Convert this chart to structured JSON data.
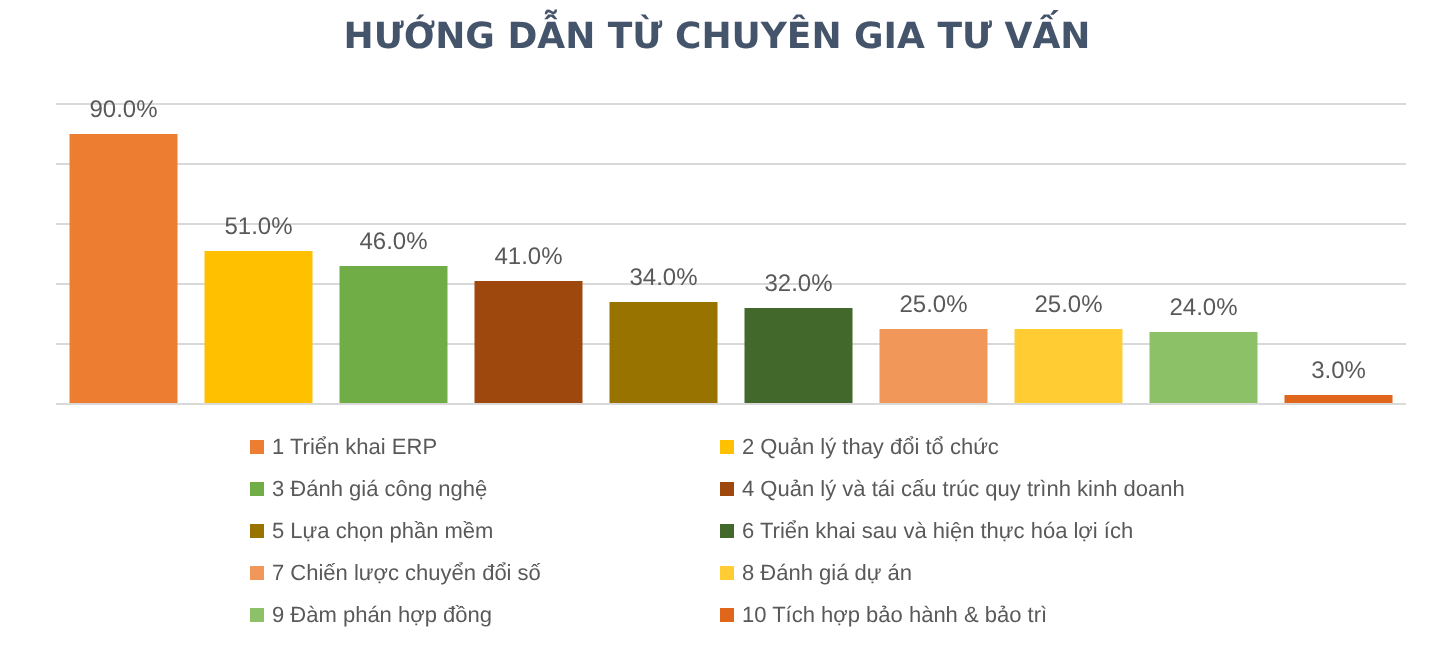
{
  "chart_data": {
    "type": "bar",
    "title": "HƯỚNG DẪN TỪ CHUYÊN GIA TƯ VẤN",
    "stacked": true,
    "categories": [
      null,
      null,
      null,
      null,
      null,
      null,
      null,
      null,
      null,
      null
    ],
    "series": [
      {
        "name": "1 Triển khai ERP",
        "color": "#ed7d31",
        "values": [
          90,
          null,
          null,
          null,
          null,
          null,
          null,
          null,
          null,
          null
        ],
        "value_labels": [
          "90.0%",
          null,
          null,
          null,
          null,
          null,
          null,
          null,
          null,
          null
        ]
      },
      {
        "name": "2 Quản lý thay đổi tổ chức",
        "color": "#ffc000",
        "values": [
          null,
          51,
          null,
          null,
          null,
          null,
          null,
          null,
          null,
          null
        ],
        "value_labels": [
          null,
          "51.0%",
          null,
          null,
          null,
          null,
          null,
          null,
          null,
          null
        ]
      },
      {
        "name": "3 Đánh giá công nghệ",
        "color": "#70ad47",
        "values": [
          null,
          null,
          46,
          null,
          null,
          null,
          null,
          null,
          null,
          null
        ],
        "value_labels": [
          null,
          null,
          "46.0%",
          null,
          null,
          null,
          null,
          null,
          null,
          null
        ]
      },
      {
        "name": "4 Quản lý và tái cấu trúc quy trình kinh doanh",
        "color": "#9e480e",
        "values": [
          null,
          null,
          null,
          41,
          null,
          null,
          null,
          null,
          null,
          null
        ],
        "value_labels": [
          null,
          null,
          null,
          "41.0%",
          null,
          null,
          null,
          null,
          null,
          null
        ]
      },
      {
        "name": "5 Lựa chọn phần mềm",
        "color": "#997300",
        "values": [
          null,
          null,
          null,
          null,
          34,
          null,
          null,
          null,
          null,
          null
        ],
        "value_labels": [
          null,
          null,
          null,
          null,
          "34.0%",
          null,
          null,
          null,
          null,
          null
        ]
      },
      {
        "name": "6 Triển khai sau và hiện thực hóa lợi ích",
        "color": "#43682b",
        "values": [
          null,
          null,
          null,
          null,
          null,
          32,
          null,
          null,
          null,
          null
        ],
        "value_labels": [
          null,
          null,
          null,
          null,
          null,
          "32.0%",
          null,
          null,
          null,
          null
        ]
      },
      {
        "name": "7 Chiến lược chuyển đổi số",
        "color": "#f1975a",
        "values": [
          null,
          null,
          null,
          null,
          null,
          null,
          25,
          null,
          null,
          null
        ],
        "value_labels": [
          null,
          null,
          null,
          null,
          null,
          null,
          "25.0%",
          null,
          null,
          null
        ]
      },
      {
        "name": "8 Đánh giá dự án",
        "color": "#ffcd33",
        "values": [
          null,
          null,
          null,
          null,
          null,
          null,
          null,
          25,
          null,
          null
        ],
        "value_labels": [
          null,
          null,
          null,
          null,
          null,
          null,
          null,
          "25.0%",
          null,
          null
        ]
      },
      {
        "name": "9 Đàm phán hợp đồng",
        "color": "#8cc168",
        "values": [
          null,
          null,
          null,
          null,
          null,
          null,
          null,
          null,
          24,
          null
        ],
        "value_labels": [
          null,
          null,
          null,
          null,
          null,
          null,
          null,
          null,
          "24.0%",
          null
        ]
      },
      {
        "name": "10 Tích hợp bảo hành & bảo trì",
        "color": "#e0661b",
        "values": [
          null,
          null,
          null,
          null,
          null,
          null,
          null,
          null,
          null,
          3
        ],
        "value_labels": [
          null,
          null,
          null,
          null,
          null,
          null,
          null,
          null,
          null,
          "3.0%"
        ]
      }
    ],
    "ylim": [
      0,
      100
    ],
    "yticks": [
      {
        "value": 0,
        "label": null
      },
      {
        "value": 20,
        "label": null
      },
      {
        "value": 40,
        "label": null
      },
      {
        "value": 60,
        "label": null
      },
      {
        "value": 80,
        "label": null
      },
      {
        "value": 100,
        "label": null
      }
    ],
    "grid": "y",
    "legend": "bottom",
    "tick_labels": false
  }
}
